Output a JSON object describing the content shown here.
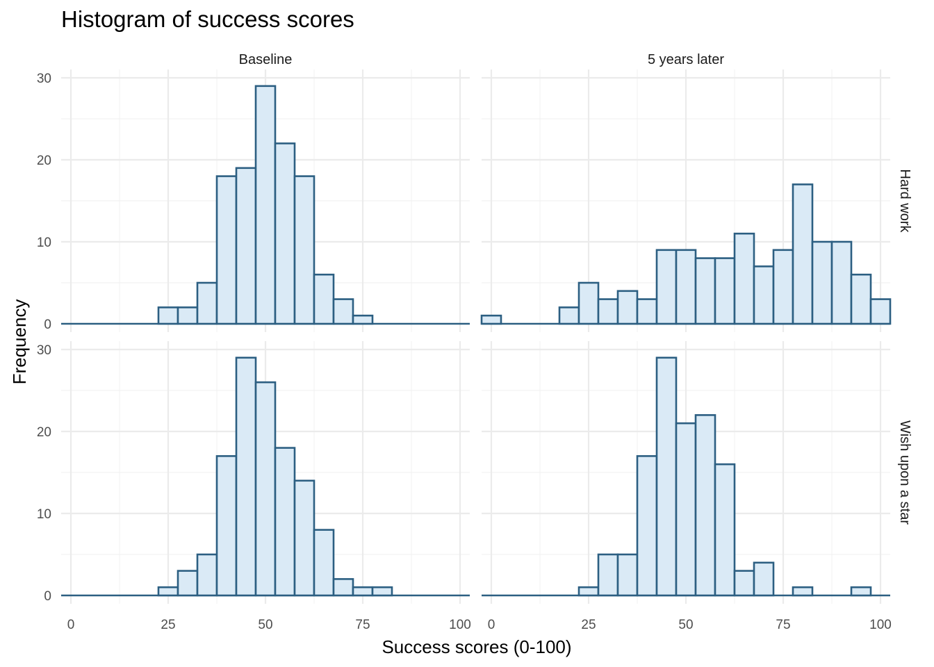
{
  "chart_data": {
    "type": "bar",
    "title": "Histogram of success scores",
    "xlabel": "Success scores (0-100)",
    "ylabel": "Frequency",
    "xlim": [
      -2.5,
      102.5
    ],
    "ylim": [
      0,
      30
    ],
    "x_ticks": [
      "0",
      "25",
      "50",
      "75",
      "100"
    ],
    "y_ticks": [
      "0",
      "10",
      "20",
      "30"
    ],
    "bin_centers": [
      0,
      5,
      10,
      15,
      20,
      25,
      30,
      35,
      40,
      45,
      50,
      55,
      60,
      65,
      70,
      75,
      80,
      85,
      90,
      95,
      100
    ],
    "column_labels": [
      "Baseline",
      "5 years later"
    ],
    "row_labels": [
      "Hard work",
      "Wish upon a star"
    ],
    "panels": [
      {
        "column": "Baseline",
        "row": "Hard work",
        "values": [
          0,
          0,
          0,
          0,
          0,
          2,
          2,
          5,
          18,
          19,
          29,
          22,
          18,
          6,
          3,
          1,
          0,
          0,
          0,
          0,
          0
        ]
      },
      {
        "column": "5 years later",
        "row": "Hard work",
        "values": [
          1,
          0,
          0,
          0,
          2,
          5,
          3,
          4,
          3,
          9,
          9,
          8,
          8,
          11,
          7,
          9,
          17,
          10,
          10,
          6,
          3
        ]
      },
      {
        "column": "Baseline",
        "row": "Wish upon a star",
        "values": [
          0,
          0,
          0,
          0,
          0,
          1,
          3,
          5,
          17,
          29,
          26,
          18,
          14,
          8,
          2,
          1,
          1,
          0,
          0,
          0,
          0
        ]
      },
      {
        "column": "5 years later",
        "row": "Wish upon a star",
        "values": [
          0,
          0,
          0,
          0,
          0,
          1,
          5,
          5,
          17,
          29,
          21,
          22,
          16,
          3,
          4,
          0,
          1,
          0,
          0,
          1,
          0
        ]
      }
    ],
    "colors": {
      "bar_fill": "#daeaf6",
      "bar_outline": "#2c5f82",
      "grid": "#ebebeb"
    },
    "grid": true,
    "legend": "none"
  }
}
